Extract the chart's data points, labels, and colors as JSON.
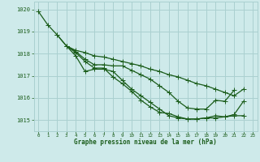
{
  "title": "Graphe pression niveau de la mer (hPa)",
  "bg_color": "#ceeaea",
  "grid_color": "#aad0d0",
  "line_color": "#1a5c1a",
  "xlim": [
    -0.5,
    23.5
  ],
  "ylim": [
    1014.5,
    1020.35
  ],
  "yticks": [
    1015,
    1016,
    1017,
    1018,
    1019,
    1020
  ],
  "xticks": [
    0,
    1,
    2,
    3,
    4,
    5,
    6,
    7,
    8,
    9,
    10,
    11,
    12,
    13,
    14,
    15,
    16,
    17,
    18,
    19,
    20,
    21,
    22,
    23
  ],
  "line1": [
    1019.9,
    1019.3,
    1018.85,
    1018.35,
    1017.9,
    1017.2,
    1017.3,
    1017.3,
    1017.2,
    1016.8,
    1016.4,
    1016.1,
    1015.8,
    1015.5,
    1015.2,
    1015.1,
    1015.05,
    1015.05,
    1015.1,
    1015.1,
    1015.15,
    1015.2,
    1015.2,
    null
  ],
  "line2": [
    null,
    null,
    null,
    1018.35,
    1018.05,
    1017.65,
    1017.35,
    1017.35,
    1016.95,
    1016.65,
    1016.3,
    1015.9,
    1015.6,
    1015.35,
    1015.3,
    1015.15,
    1015.05,
    1015.05,
    1015.1,
    1015.2,
    1015.15,
    1015.25,
    1015.85,
    null
  ],
  "line3": [
    null,
    null,
    null,
    1018.35,
    1018.1,
    1017.75,
    1017.5,
    1017.5,
    1017.45,
    1017.45,
    1017.25,
    1017.05,
    1016.85,
    1016.55,
    1016.25,
    1015.85,
    1015.55,
    1015.5,
    1015.5,
    1015.9,
    1015.85,
    1016.35,
    null,
    null
  ],
  "line4": [
    null,
    null,
    1018.85,
    1018.35,
    1018.15,
    1018.05,
    1017.9,
    1017.85,
    1017.75,
    1017.65,
    1017.55,
    1017.45,
    1017.3,
    1017.2,
    1017.05,
    1016.95,
    1016.8,
    1016.65,
    1016.55,
    1016.4,
    1016.25,
    1016.1,
    1016.4,
    null
  ]
}
